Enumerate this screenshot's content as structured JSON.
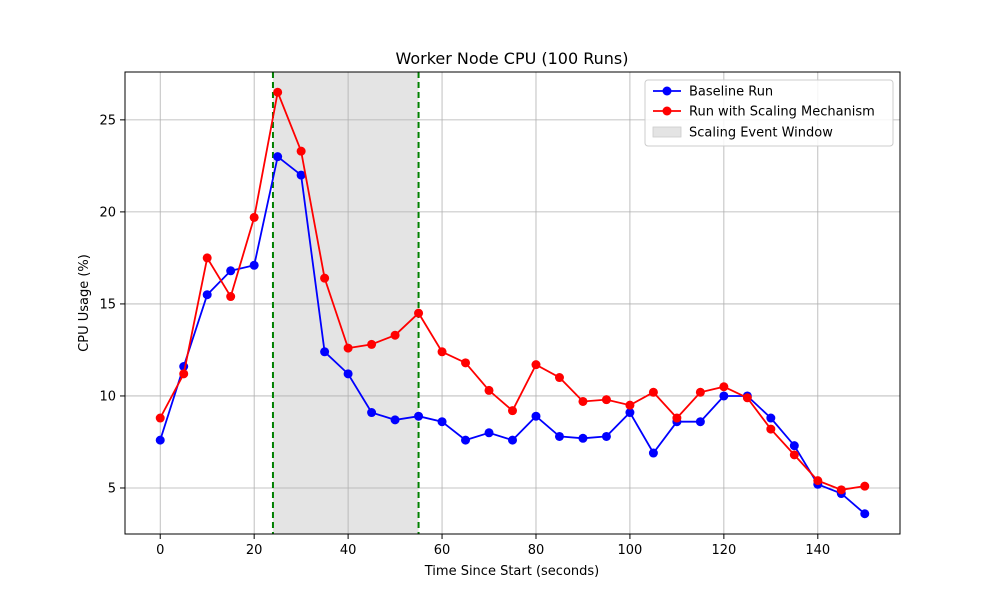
{
  "chart_data": {
    "type": "line",
    "title": "Worker Node CPU (100 Runs)",
    "xlabel": "Time Since Start (seconds)",
    "ylabel": "CPU Usage (%)",
    "xlim": [
      -7.5,
      157.5
    ],
    "ylim": [
      2.5,
      27.6
    ],
    "xticks": [
      0,
      20,
      40,
      60,
      80,
      100,
      120,
      140
    ],
    "yticks": [
      5,
      10,
      15,
      20,
      25
    ],
    "grid": true,
    "legend_position": "top-right",
    "x": [
      0,
      5,
      10,
      15,
      20,
      25,
      30,
      35,
      40,
      45,
      50,
      55,
      60,
      65,
      70,
      75,
      80,
      85,
      90,
      95,
      100,
      105,
      110,
      115,
      120,
      125,
      130,
      135,
      140,
      145,
      150
    ],
    "series": [
      {
        "name": "Baseline Run",
        "color": "#0000ff",
        "values": [
          7.6,
          11.6,
          15.5,
          16.8,
          17.1,
          23.0,
          22.0,
          12.4,
          11.2,
          9.1,
          8.7,
          8.9,
          8.6,
          7.6,
          8.0,
          7.6,
          8.9,
          7.8,
          7.7,
          7.8,
          9.1,
          6.9,
          8.6,
          8.6,
          10.0,
          10.0,
          8.8,
          7.3,
          5.2,
          4.7,
          3.6
        ]
      },
      {
        "name": "Run with Scaling Mechanism",
        "color": "#ff0000",
        "values": [
          8.8,
          11.2,
          17.5,
          15.4,
          19.7,
          26.5,
          23.3,
          16.4,
          12.6,
          12.8,
          13.3,
          14.5,
          12.4,
          11.8,
          10.3,
          9.2,
          11.7,
          11.0,
          9.7,
          9.8,
          9.5,
          10.2,
          8.8,
          10.2,
          10.5,
          9.9,
          8.2,
          6.8,
          5.4,
          4.9,
          5.1
        ]
      }
    ],
    "shaded_region": {
      "label": "Scaling Event Window",
      "x_start": 24,
      "x_end": 55,
      "color": "#e4e4e4",
      "edge_color": "#008000"
    }
  }
}
